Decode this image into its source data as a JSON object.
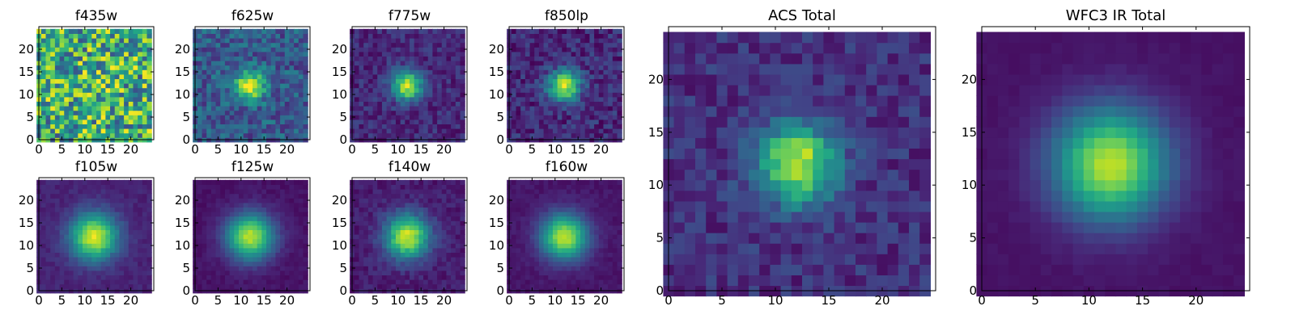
{
  "chart_data": [
    {
      "type": "heatmap",
      "title": "f435w",
      "colormap": "viridis",
      "grid_size": [
        25,
        25
      ],
      "peak": [
        12,
        12
      ],
      "sigma": 3.0,
      "amplitude": 0.12,
      "background": 0.62,
      "noise": 0.38,
      "xlim": [
        0,
        25
      ],
      "ylim": [
        0,
        25
      ],
      "xticks": [
        0,
        5,
        10,
        15,
        20
      ],
      "yticks": [
        0,
        5,
        10,
        15,
        20
      ]
    },
    {
      "type": "heatmap",
      "title": "f625w",
      "colormap": "viridis",
      "grid_size": [
        25,
        25
      ],
      "peak": [
        12,
        12
      ],
      "sigma": 2.2,
      "amplitude": 0.7,
      "background": 0.28,
      "noise": 0.16,
      "xlim": [
        0,
        25
      ],
      "ylim": [
        0,
        25
      ],
      "xticks": [
        0,
        5,
        10,
        15,
        20
      ],
      "yticks": [
        0,
        5,
        10,
        15,
        20
      ]
    },
    {
      "type": "heatmap",
      "title": "f775w",
      "colormap": "viridis",
      "grid_size": [
        25,
        25
      ],
      "peak": [
        12,
        12
      ],
      "sigma": 2.3,
      "amplitude": 0.8,
      "background": 0.12,
      "noise": 0.1,
      "xlim": [
        0,
        25
      ],
      "ylim": [
        0,
        25
      ],
      "xticks": [
        0,
        5,
        10,
        15,
        20
      ],
      "yticks": [
        0,
        5,
        10,
        15,
        20
      ]
    },
    {
      "type": "heatmap",
      "title": "f850lp",
      "colormap": "viridis",
      "grid_size": [
        25,
        25
      ],
      "peak": [
        12,
        12
      ],
      "sigma": 2.4,
      "amplitude": 0.8,
      "background": 0.12,
      "noise": 0.12,
      "xlim": [
        0,
        25
      ],
      "ylim": [
        0,
        25
      ],
      "xticks": [
        0,
        5,
        10,
        15,
        20
      ],
      "yticks": [
        0,
        5,
        10,
        15,
        20
      ]
    },
    {
      "type": "heatmap",
      "title": "f105w",
      "colormap": "viridis",
      "grid_size": [
        25,
        25
      ],
      "peak": [
        12,
        12
      ],
      "sigma": 3.6,
      "amplitude": 0.85,
      "background": 0.1,
      "noise": 0.04,
      "xlim": [
        0,
        25
      ],
      "ylim": [
        0,
        25
      ],
      "xticks": [
        0,
        5,
        10,
        15,
        20
      ],
      "yticks": [
        0,
        5,
        10,
        15,
        20
      ]
    },
    {
      "type": "heatmap",
      "title": "f125w",
      "colormap": "viridis",
      "grid_size": [
        25,
        25
      ],
      "peak": [
        12,
        12
      ],
      "sigma": 3.6,
      "amplitude": 0.85,
      "background": 0.05,
      "noise": 0.03,
      "xlim": [
        0,
        25
      ],
      "ylim": [
        0,
        25
      ],
      "xticks": [
        0,
        5,
        10,
        15,
        20
      ],
      "yticks": [
        0,
        5,
        10,
        15,
        20
      ]
    },
    {
      "type": "heatmap",
      "title": "f140w",
      "colormap": "viridis",
      "grid_size": [
        25,
        25
      ],
      "peak": [
        12,
        12
      ],
      "sigma": 3.4,
      "amplitude": 0.85,
      "background": 0.08,
      "noise": 0.06,
      "xlim": [
        0,
        25
      ],
      "ylim": [
        0,
        25
      ],
      "xticks": [
        0,
        5,
        10,
        15,
        20
      ],
      "yticks": [
        0,
        5,
        10,
        15,
        20
      ]
    },
    {
      "type": "heatmap",
      "title": "f160w",
      "colormap": "viridis",
      "grid_size": [
        25,
        25
      ],
      "peak": [
        12,
        12
      ],
      "sigma": 3.5,
      "amplitude": 0.85,
      "background": 0.06,
      "noise": 0.03,
      "xlim": [
        0,
        25
      ],
      "ylim": [
        0,
        25
      ],
      "xticks": [
        0,
        5,
        10,
        15,
        20
      ],
      "yticks": [
        0,
        5,
        10,
        15,
        20
      ]
    },
    {
      "type": "heatmap",
      "title": "ACS Total",
      "colormap": "viridis",
      "grid_size": [
        25,
        25
      ],
      "peak": [
        12,
        12
      ],
      "sigma": 2.6,
      "amplitude": 0.78,
      "background": 0.14,
      "noise": 0.1,
      "xlim": [
        0,
        25
      ],
      "ylim": [
        0,
        25
      ],
      "xticks": [
        0,
        5,
        10,
        15,
        20
      ],
      "yticks": [
        0,
        5,
        10,
        15,
        20
      ]
    },
    {
      "type": "heatmap",
      "title": "WFC3 IR Total",
      "colormap": "viridis",
      "grid_size": [
        25,
        25
      ],
      "peak": [
        12,
        12
      ],
      "sigma": 3.7,
      "amplitude": 0.85,
      "background": 0.05,
      "noise": 0.015,
      "xlim": [
        0,
        25
      ],
      "ylim": [
        0,
        25
      ],
      "xticks": [
        0,
        5,
        10,
        15,
        20
      ],
      "yticks": [
        0,
        5,
        10,
        15,
        20
      ]
    }
  ]
}
